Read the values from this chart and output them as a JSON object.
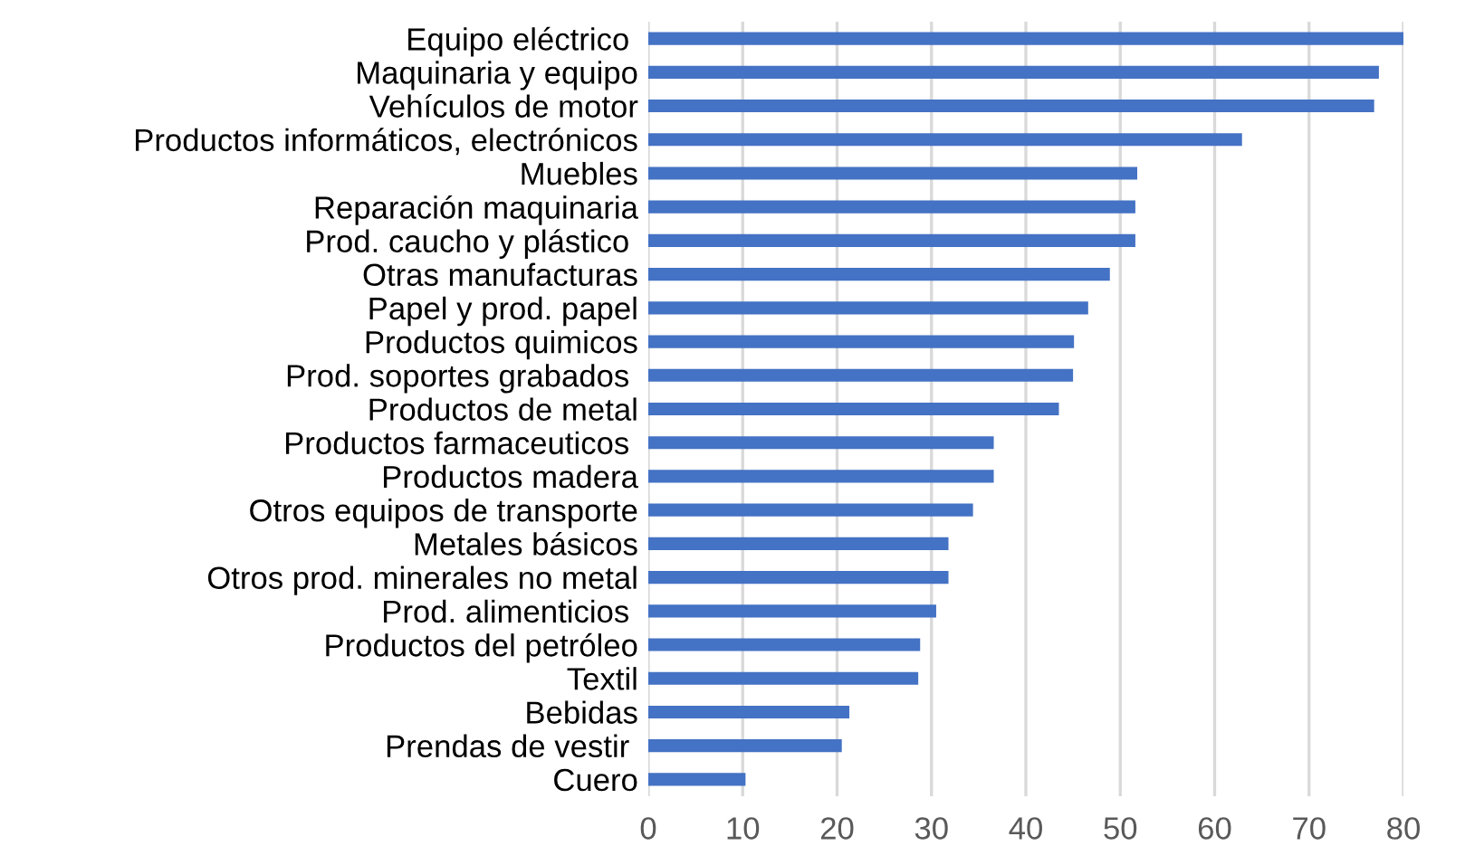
{
  "chart_data": {
    "type": "bar",
    "orientation": "horizontal",
    "categories": [
      "Equipo eléctrico ",
      "Maquinaria y equipo",
      "Vehículos de motor",
      "Productos informáticos, electrónicos",
      "Muebles",
      "Reparación maquinaria",
      "Prod. caucho y plástico ",
      "Otras manufacturas",
      "Papel y prod. papel",
      "Productos quimicos",
      "Prod. soportes grabados ",
      "Productos de metal",
      "Productos farmaceuticos ",
      "Productos madera",
      "Otros equipos de transporte",
      "Metales básicos",
      "Otros prod. minerales no metal",
      "Prod. alimenticios ",
      "Productos del petróleo",
      "Textil",
      "Bebidas",
      "Prendas de vestir ",
      "Cuero"
    ],
    "values": [
      80.0,
      77.4,
      76.9,
      62.9,
      51.8,
      51.6,
      51.6,
      48.9,
      46.6,
      45.1,
      45.0,
      43.5,
      36.6,
      36.6,
      34.4,
      31.8,
      31.8,
      30.5,
      28.8,
      28.6,
      21.3,
      20.5,
      10.3
    ],
    "color": "#4472c4",
    "xlim": [
      0,
      80
    ],
    "xticks": [
      0,
      10,
      20,
      30,
      40,
      50,
      60,
      70,
      80
    ],
    "grid": "x"
  }
}
